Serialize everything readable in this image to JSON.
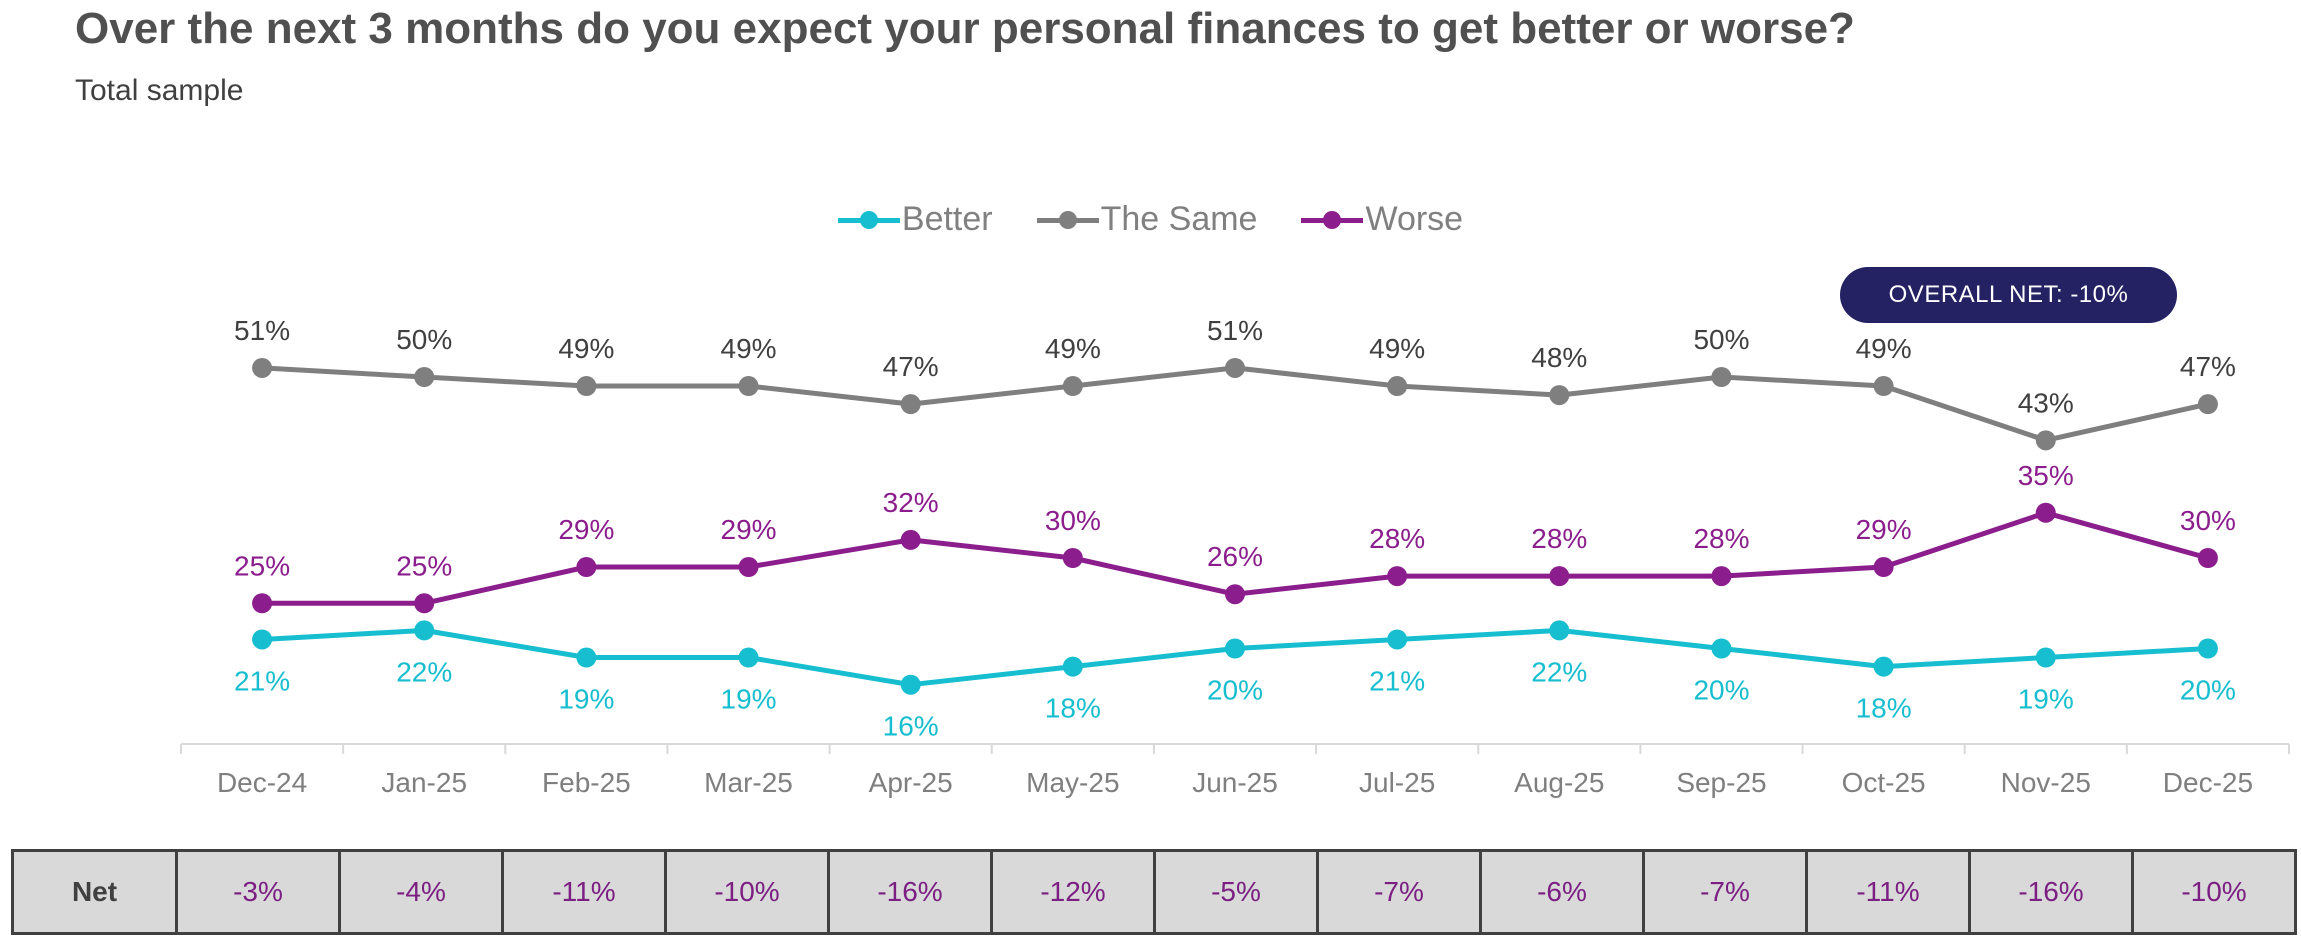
{
  "title": "Over the next 3 months do you expect your personal finances to get better or worse?",
  "subtitle": "Total sample",
  "overall_net": "OVERALL NET: -10%",
  "net_row_label": "Net",
  "net_values": [
    "-3%",
    "-4%",
    "-11%",
    "-10%",
    "-16%",
    "-12%",
    "-5%",
    "-7%",
    "-6%",
    "-7%",
    "-11%",
    "-16%",
    "-10%"
  ],
  "colors": {
    "better": "#17becf",
    "same": "#7f7f7f",
    "worse": "#8b1e8c",
    "badge": "#242263"
  },
  "chart_data": {
    "type": "line",
    "categories": [
      "Dec-24",
      "Jan-25",
      "Feb-25",
      "Mar-25",
      "Apr-25",
      "May-25",
      "Jun-25",
      "Jul-25",
      "Aug-25",
      "Sep-25",
      "Oct-25",
      "Nov-25",
      "Dec-25"
    ],
    "series": [
      {
        "name": "Better",
        "values": [
          21,
          22,
          19,
          19,
          16,
          18,
          20,
          21,
          22,
          20,
          18,
          19,
          20
        ]
      },
      {
        "name": "The Same",
        "values": [
          51,
          50,
          49,
          49,
          47,
          49,
          51,
          49,
          48,
          50,
          49,
          43,
          47
        ]
      },
      {
        "name": "Worse",
        "values": [
          25,
          25,
          29,
          29,
          32,
          30,
          26,
          28,
          28,
          28,
          29,
          35,
          30
        ]
      }
    ],
    "legend_position": "top-center",
    "data_labels": true,
    "grid": false
  }
}
